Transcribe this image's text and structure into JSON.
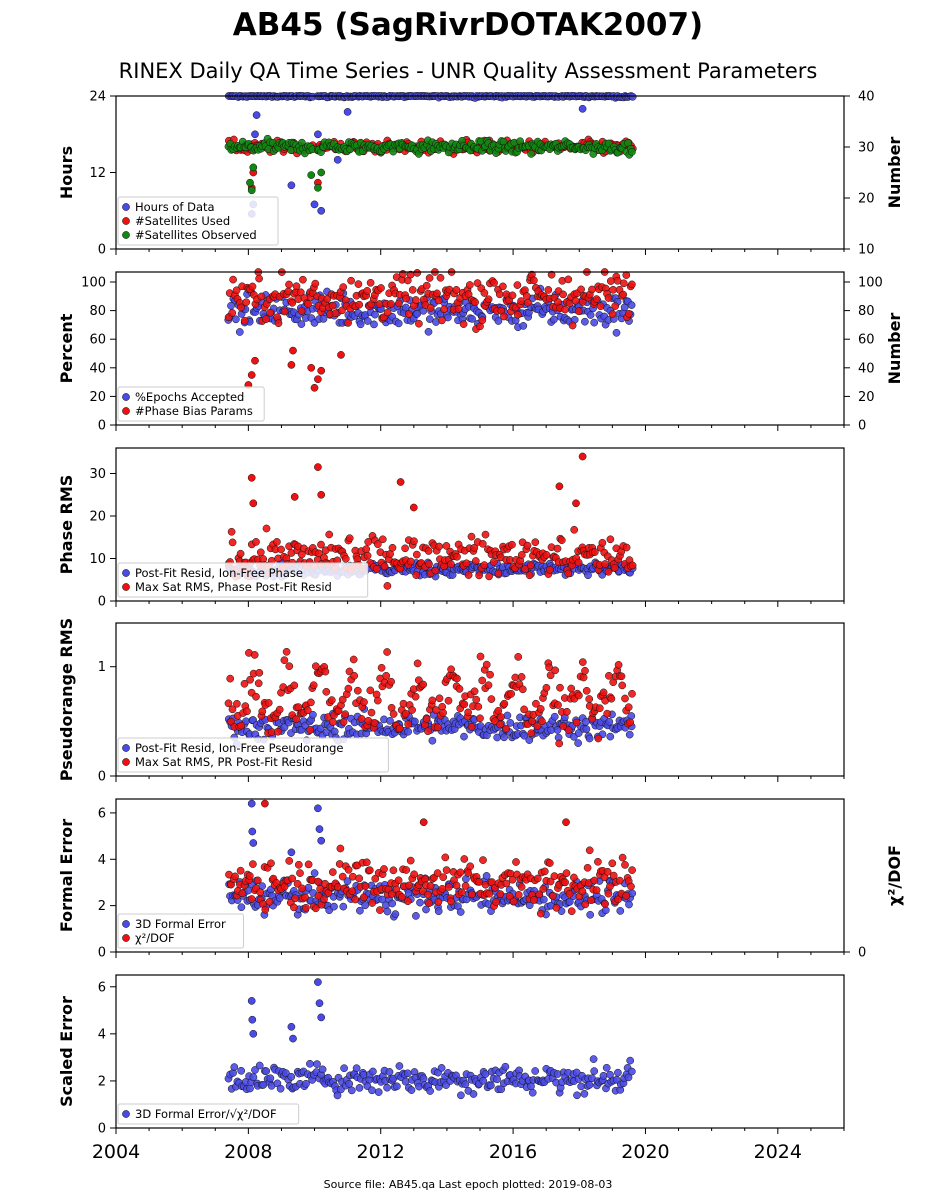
{
  "title": "AB45 (SagRivrDOTAK2007)",
  "subtitle": "RINEX Daily QA Time Series - UNR Quality Assessment Parameters",
  "footer": "Source file: AB45.qa Last epoch plotted: 2019-08-03",
  "colors": {
    "blue": "#4a4ae6",
    "red": "#ee1111",
    "green": "#118811"
  },
  "chart_data": [
    {
      "type": "scatter",
      "panel": "hours",
      "ylabel": "Hours",
      "ylabel_right": "Number",
      "ylim": [
        0,
        24
      ],
      "ylim_right": [
        10,
        40
      ],
      "yticks": [
        "0",
        "12",
        "24"
      ],
      "yticks_right": [
        "10",
        "20",
        "30",
        "40"
      ],
      "xlim": [
        2004,
        2026
      ],
      "series": [
        {
          "name": "Hours of Data",
          "color": "#4a4ae6",
          "axis": "left",
          "mean": 24,
          "spread": 0.1,
          "t_start": 2007.4,
          "t_end": 2019.6,
          "outliers": [
            [
              2008.1,
              5.5
            ],
            [
              2008.15,
              7.0
            ],
            [
              2008.2,
              18
            ],
            [
              2008.25,
              21
            ],
            [
              2009.3,
              10
            ],
            [
              2010.0,
              7
            ],
            [
              2010.1,
              18
            ],
            [
              2010.2,
              6
            ],
            [
              2010.7,
              14
            ],
            [
              2011.0,
              21.5
            ],
            [
              2018.1,
              22
            ]
          ]
        },
        {
          "name": "#Satellites Used",
          "color": "#ee1111",
          "axis": "right",
          "mean": 30,
          "spread": 0.6,
          "t_start": 2007.4,
          "t_end": 2019.6,
          "outliers": [
            [
              2008.1,
              22
            ],
            [
              2008.15,
              25
            ],
            [
              2010.1,
              23
            ]
          ]
        },
        {
          "name": "#Satellites Observed",
          "color": "#118811",
          "axis": "right",
          "mean": 30,
          "spread": 0.6,
          "t_start": 2007.4,
          "t_end": 2019.6,
          "outliers": [
            [
              2008.05,
              23
            ],
            [
              2008.1,
              21.5
            ],
            [
              2008.15,
              26
            ],
            [
              2009.9,
              24.5
            ],
            [
              2010.1,
              22
            ],
            [
              2010.2,
              25
            ]
          ]
        }
      ]
    },
    {
      "type": "scatter",
      "panel": "percent",
      "ylabel": "Percent",
      "ylabel_right": "Number",
      "ylim": [
        0,
        107
      ],
      "ylim_right": [
        0,
        107
      ],
      "yticks": [
        "0",
        "20",
        "40",
        "60",
        "80",
        "100"
      ],
      "yticks_right": [
        "0",
        "20",
        "40",
        "60",
        "80",
        "100"
      ],
      "xlim": [
        2004,
        2026
      ],
      "series": [
        {
          "name": "%Epochs Accepted",
          "color": "#4a4ae6",
          "axis": "left",
          "mean": 80,
          "spread": 6,
          "t_start": 2007.4,
          "t_end": 2019.6
        },
        {
          "name": "#Phase Bias Params",
          "color": "#ee1111",
          "axis": "right",
          "mean": 90,
          "spread": 9,
          "t_start": 2007.4,
          "t_end": 2019.6,
          "outliers": [
            [
              2008.0,
              28
            ],
            [
              2008.1,
              35
            ],
            [
              2008.2,
              45
            ],
            [
              2009.3,
              42
            ],
            [
              2009.35,
              52
            ],
            [
              2009.9,
              40
            ],
            [
              2010.0,
              26
            ],
            [
              2010.1,
              32
            ],
            [
              2010.2,
              38
            ],
            [
              2010.8,
              49
            ]
          ]
        }
      ]
    },
    {
      "type": "scatter",
      "panel": "phase-rms",
      "ylabel": "Phase RMS",
      "ylim": [
        0,
        36
      ],
      "yticks": [
        "0",
        "10",
        "20",
        "30"
      ],
      "xlim": [
        2004,
        2026
      ],
      "series": [
        {
          "name": "Post-Fit Resid, Ion-Free Phase",
          "color": "#4a4ae6",
          "axis": "left",
          "mean": 7.5,
          "spread": 0.8,
          "t_start": 2007.4,
          "t_end": 2019.6
        },
        {
          "name": "Max Sat RMS, Phase Post-Fit Resid",
          "color": "#ee1111",
          "axis": "left",
          "mean": 10.5,
          "spread": 2.2,
          "t_start": 2007.4,
          "t_end": 2019.6,
          "outliers": [
            [
              2008.1,
              29
            ],
            [
              2008.15,
              23
            ],
            [
              2009.4,
              24.5
            ],
            [
              2010.1,
              31.5
            ],
            [
              2010.2,
              25
            ],
            [
              2012.6,
              28
            ],
            [
              2013.0,
              22
            ],
            [
              2017.4,
              27
            ],
            [
              2017.9,
              23
            ],
            [
              2018.1,
              34
            ]
          ]
        }
      ]
    },
    {
      "type": "scatter",
      "panel": "pseudorange-rms",
      "ylabel": "Pseudorange RMS",
      "ylim": [
        0,
        1.4
      ],
      "yticks": [
        "0",
        "1"
      ],
      "xlim": [
        2004,
        2026
      ],
      "series": [
        {
          "name": "Post-Fit Resid, Ion-Free Pseudorange",
          "color": "#4a4ae6",
          "axis": "left",
          "mean": 0.45,
          "spread": 0.06,
          "t_start": 2007.4,
          "t_end": 2019.6
        },
        {
          "name": "Max Sat RMS, PR Post-Fit Resid",
          "color": "#ee1111",
          "axis": "left",
          "mean": 0.6,
          "spread": 0.18,
          "t_start": 2007.4,
          "t_end": 2019.6
        }
      ]
    },
    {
      "type": "scatter",
      "panel": "formal-error",
      "ylabel": "Formal Error",
      "ylabel_right": "χ²/DOF",
      "ylim": [
        0,
        6.6
      ],
      "yticks": [
        "0",
        "2",
        "4",
        "6"
      ],
      "yticks_right": [
        "0"
      ],
      "xlim": [
        2004,
        2026
      ],
      "series": [
        {
          "name": "3D Formal Error",
          "color": "#4a4ae6",
          "axis": "left",
          "mean": 2.4,
          "spread": 0.35,
          "t_start": 2007.4,
          "t_end": 2019.6,
          "outliers": [
            [
              2008.1,
              6.4
            ],
            [
              2008.12,
              5.2
            ],
            [
              2008.15,
              4.7
            ],
            [
              2009.3,
              4.3
            ],
            [
              2010.1,
              6.2
            ],
            [
              2010.15,
              5.3
            ],
            [
              2010.2,
              4.8
            ]
          ]
        },
        {
          "name": "χ²/DOF",
          "color": "#ee1111",
          "axis": "left",
          "mean": 3.0,
          "spread": 0.55,
          "t_start": 2007.4,
          "t_end": 2019.6,
          "outliers": [
            [
              2008.5,
              6.4
            ],
            [
              2013.3,
              5.6
            ],
            [
              2017.6,
              5.6
            ]
          ]
        }
      ]
    },
    {
      "type": "scatter",
      "panel": "scaled-error",
      "ylabel": "Scaled Error",
      "ylim": [
        0,
        6.5
      ],
      "yticks": [
        "0",
        "2",
        "4",
        "6"
      ],
      "xlim": [
        2004,
        2026
      ],
      "xticks": [
        "2004",
        "2008",
        "2012",
        "2016",
        "2020",
        "2024"
      ],
      "series": [
        {
          "name": "3D Formal Error/√χ²/DOF",
          "color": "#4a4ae6",
          "axis": "left",
          "mean": 2.1,
          "spread": 0.3,
          "t_start": 2007.4,
          "t_end": 2019.6,
          "outliers": [
            [
              2008.1,
              5.4
            ],
            [
              2008.12,
              4.6
            ],
            [
              2008.15,
              4.0
            ],
            [
              2009.3,
              4.3
            ],
            [
              2009.35,
              3.8
            ],
            [
              2010.1,
              6.2
            ],
            [
              2010.15,
              5.3
            ],
            [
              2010.2,
              4.7
            ]
          ]
        }
      ]
    }
  ]
}
